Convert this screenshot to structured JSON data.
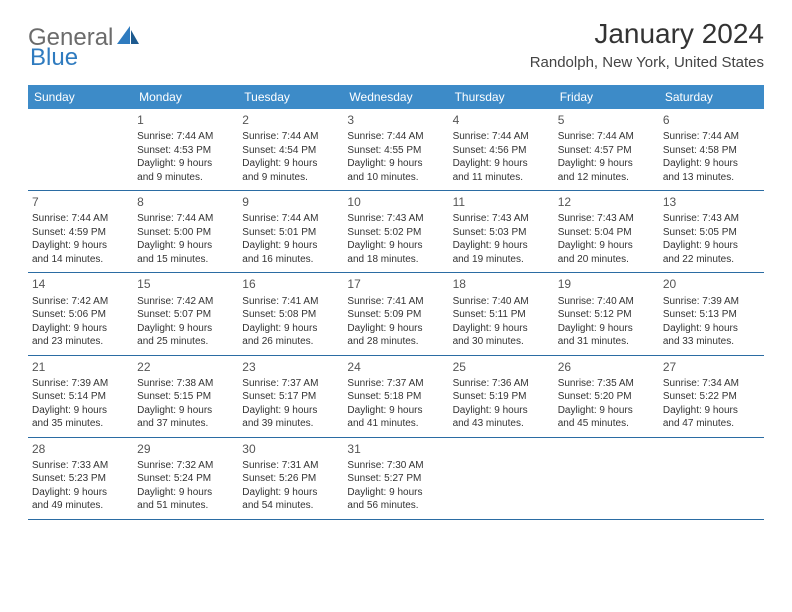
{
  "logo": {
    "word1": "General",
    "word2": "Blue"
  },
  "title": "January 2024",
  "location": "Randolph, New York, United States",
  "colors": {
    "header_bg": "#3d8bc8",
    "header_text": "#ffffff",
    "border": "#2b6ca3",
    "logo_gray": "#6b6b6b",
    "logo_blue": "#2f7bbf",
    "text": "#333333"
  },
  "day_names": [
    "Sunday",
    "Monday",
    "Tuesday",
    "Wednesday",
    "Thursday",
    "Friday",
    "Saturday"
  ],
  "weeks": [
    [
      null,
      {
        "n": "1",
        "sr": "Sunrise: 7:44 AM",
        "ss": "Sunset: 4:53 PM",
        "d1": "Daylight: 9 hours",
        "d2": "and 9 minutes."
      },
      {
        "n": "2",
        "sr": "Sunrise: 7:44 AM",
        "ss": "Sunset: 4:54 PM",
        "d1": "Daylight: 9 hours",
        "d2": "and 9 minutes."
      },
      {
        "n": "3",
        "sr": "Sunrise: 7:44 AM",
        "ss": "Sunset: 4:55 PM",
        "d1": "Daylight: 9 hours",
        "d2": "and 10 minutes."
      },
      {
        "n": "4",
        "sr": "Sunrise: 7:44 AM",
        "ss": "Sunset: 4:56 PM",
        "d1": "Daylight: 9 hours",
        "d2": "and 11 minutes."
      },
      {
        "n": "5",
        "sr": "Sunrise: 7:44 AM",
        "ss": "Sunset: 4:57 PM",
        "d1": "Daylight: 9 hours",
        "d2": "and 12 minutes."
      },
      {
        "n": "6",
        "sr": "Sunrise: 7:44 AM",
        "ss": "Sunset: 4:58 PM",
        "d1": "Daylight: 9 hours",
        "d2": "and 13 minutes."
      }
    ],
    [
      {
        "n": "7",
        "sr": "Sunrise: 7:44 AM",
        "ss": "Sunset: 4:59 PM",
        "d1": "Daylight: 9 hours",
        "d2": "and 14 minutes."
      },
      {
        "n": "8",
        "sr": "Sunrise: 7:44 AM",
        "ss": "Sunset: 5:00 PM",
        "d1": "Daylight: 9 hours",
        "d2": "and 15 minutes."
      },
      {
        "n": "9",
        "sr": "Sunrise: 7:44 AM",
        "ss": "Sunset: 5:01 PM",
        "d1": "Daylight: 9 hours",
        "d2": "and 16 minutes."
      },
      {
        "n": "10",
        "sr": "Sunrise: 7:43 AM",
        "ss": "Sunset: 5:02 PM",
        "d1": "Daylight: 9 hours",
        "d2": "and 18 minutes."
      },
      {
        "n": "11",
        "sr": "Sunrise: 7:43 AM",
        "ss": "Sunset: 5:03 PM",
        "d1": "Daylight: 9 hours",
        "d2": "and 19 minutes."
      },
      {
        "n": "12",
        "sr": "Sunrise: 7:43 AM",
        "ss": "Sunset: 5:04 PM",
        "d1": "Daylight: 9 hours",
        "d2": "and 20 minutes."
      },
      {
        "n": "13",
        "sr": "Sunrise: 7:43 AM",
        "ss": "Sunset: 5:05 PM",
        "d1": "Daylight: 9 hours",
        "d2": "and 22 minutes."
      }
    ],
    [
      {
        "n": "14",
        "sr": "Sunrise: 7:42 AM",
        "ss": "Sunset: 5:06 PM",
        "d1": "Daylight: 9 hours",
        "d2": "and 23 minutes."
      },
      {
        "n": "15",
        "sr": "Sunrise: 7:42 AM",
        "ss": "Sunset: 5:07 PM",
        "d1": "Daylight: 9 hours",
        "d2": "and 25 minutes."
      },
      {
        "n": "16",
        "sr": "Sunrise: 7:41 AM",
        "ss": "Sunset: 5:08 PM",
        "d1": "Daylight: 9 hours",
        "d2": "and 26 minutes."
      },
      {
        "n": "17",
        "sr": "Sunrise: 7:41 AM",
        "ss": "Sunset: 5:09 PM",
        "d1": "Daylight: 9 hours",
        "d2": "and 28 minutes."
      },
      {
        "n": "18",
        "sr": "Sunrise: 7:40 AM",
        "ss": "Sunset: 5:11 PM",
        "d1": "Daylight: 9 hours",
        "d2": "and 30 minutes."
      },
      {
        "n": "19",
        "sr": "Sunrise: 7:40 AM",
        "ss": "Sunset: 5:12 PM",
        "d1": "Daylight: 9 hours",
        "d2": "and 31 minutes."
      },
      {
        "n": "20",
        "sr": "Sunrise: 7:39 AM",
        "ss": "Sunset: 5:13 PM",
        "d1": "Daylight: 9 hours",
        "d2": "and 33 minutes."
      }
    ],
    [
      {
        "n": "21",
        "sr": "Sunrise: 7:39 AM",
        "ss": "Sunset: 5:14 PM",
        "d1": "Daylight: 9 hours",
        "d2": "and 35 minutes."
      },
      {
        "n": "22",
        "sr": "Sunrise: 7:38 AM",
        "ss": "Sunset: 5:15 PM",
        "d1": "Daylight: 9 hours",
        "d2": "and 37 minutes."
      },
      {
        "n": "23",
        "sr": "Sunrise: 7:37 AM",
        "ss": "Sunset: 5:17 PM",
        "d1": "Daylight: 9 hours",
        "d2": "and 39 minutes."
      },
      {
        "n": "24",
        "sr": "Sunrise: 7:37 AM",
        "ss": "Sunset: 5:18 PM",
        "d1": "Daylight: 9 hours",
        "d2": "and 41 minutes."
      },
      {
        "n": "25",
        "sr": "Sunrise: 7:36 AM",
        "ss": "Sunset: 5:19 PM",
        "d1": "Daylight: 9 hours",
        "d2": "and 43 minutes."
      },
      {
        "n": "26",
        "sr": "Sunrise: 7:35 AM",
        "ss": "Sunset: 5:20 PM",
        "d1": "Daylight: 9 hours",
        "d2": "and 45 minutes."
      },
      {
        "n": "27",
        "sr": "Sunrise: 7:34 AM",
        "ss": "Sunset: 5:22 PM",
        "d1": "Daylight: 9 hours",
        "d2": "and 47 minutes."
      }
    ],
    [
      {
        "n": "28",
        "sr": "Sunrise: 7:33 AM",
        "ss": "Sunset: 5:23 PM",
        "d1": "Daylight: 9 hours",
        "d2": "and 49 minutes."
      },
      {
        "n": "29",
        "sr": "Sunrise: 7:32 AM",
        "ss": "Sunset: 5:24 PM",
        "d1": "Daylight: 9 hours",
        "d2": "and 51 minutes."
      },
      {
        "n": "30",
        "sr": "Sunrise: 7:31 AM",
        "ss": "Sunset: 5:26 PM",
        "d1": "Daylight: 9 hours",
        "d2": "and 54 minutes."
      },
      {
        "n": "31",
        "sr": "Sunrise: 7:30 AM",
        "ss": "Sunset: 5:27 PM",
        "d1": "Daylight: 9 hours",
        "d2": "and 56 minutes."
      },
      null,
      null,
      null
    ]
  ]
}
